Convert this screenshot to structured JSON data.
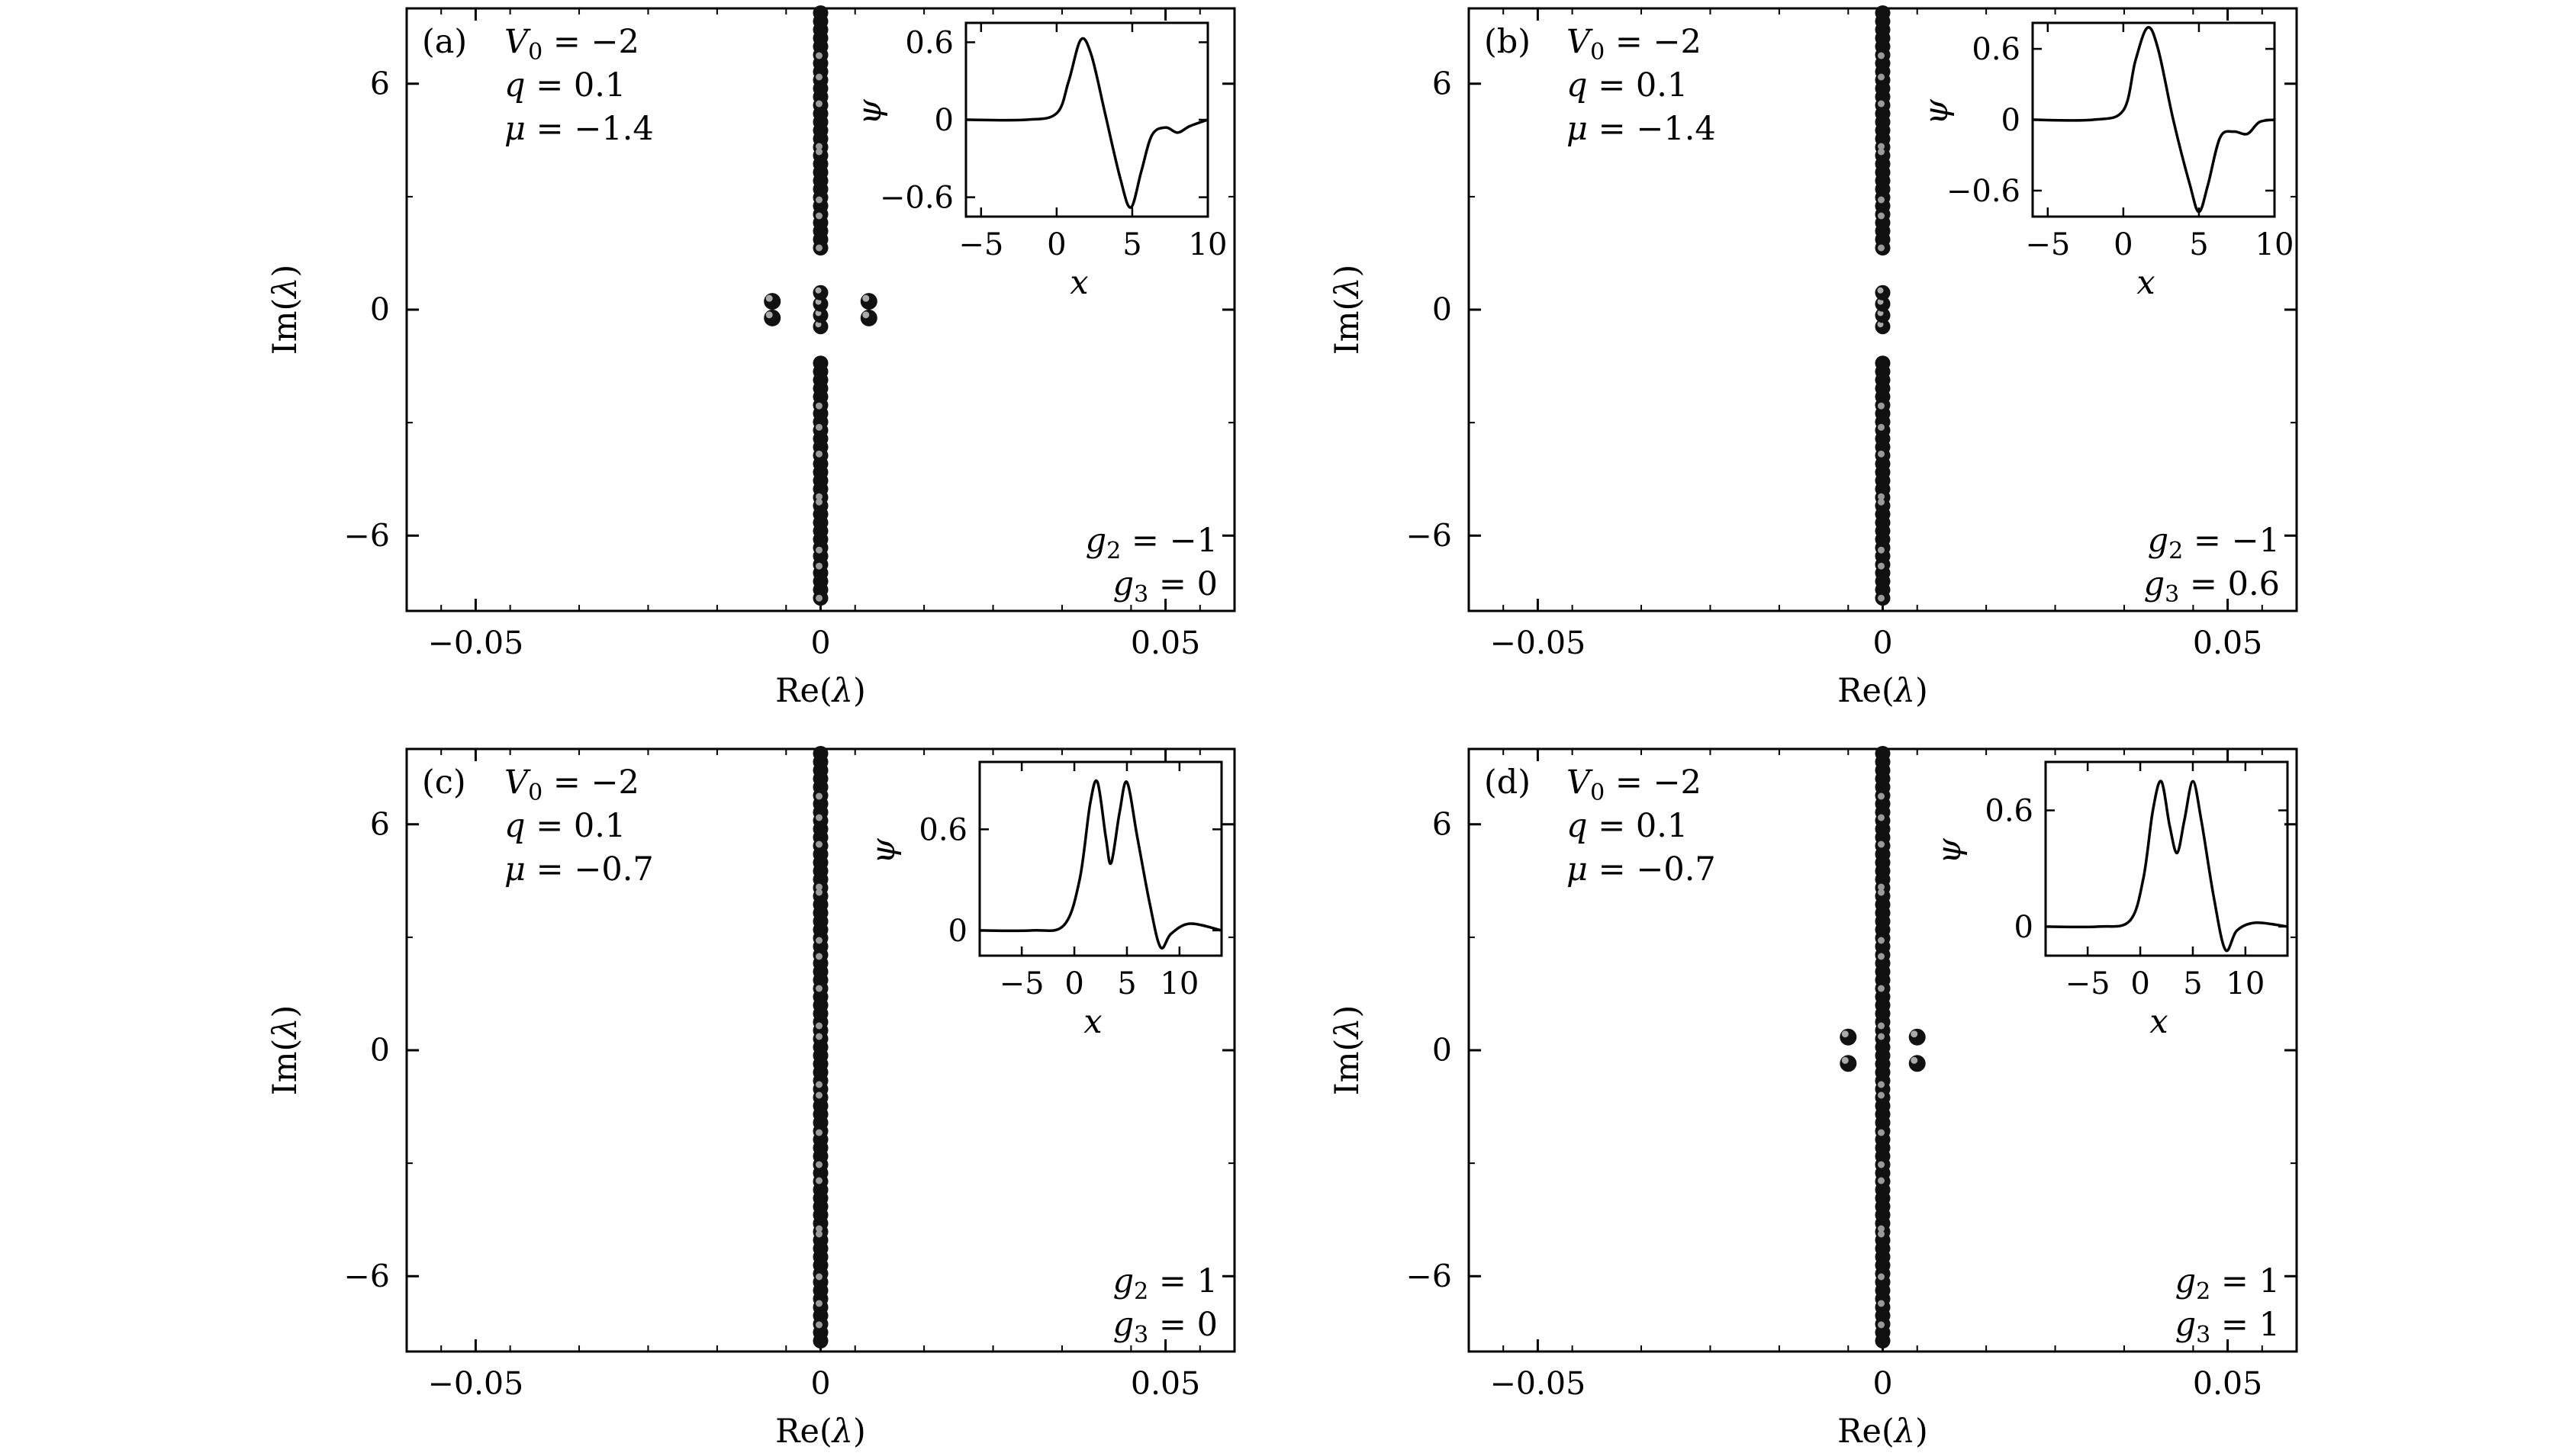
{
  "chart_data": [
    {
      "type": "scatter",
      "panel_label": "(a)",
      "xlabel": "Re(λ)",
      "ylabel": "Im(λ)",
      "xlim": [
        -0.06,
        0.06
      ],
      "ylim": [
        -8,
        8
      ],
      "xticks": [
        "−0.05",
        "0",
        "0.05"
      ],
      "yticks": [
        "6",
        "0",
        "−6"
      ],
      "params": [
        "V0 = −2",
        "q = 0.1",
        "μ = −1.4"
      ],
      "couplings": [
        "g2 = −1",
        "g3 = 0"
      ],
      "spectrum": {
        "continuous_re": 0,
        "continuous_im": [
          [
            1.3,
            8
          ],
          [
            -8,
            -1.3
          ]
        ],
        "internal_im": [
          -0.45,
          -0.15,
          0.15,
          0.45
        ],
        "points": [
          [
            -0.007,
            0.22
          ],
          [
            -0.007,
            -0.22
          ],
          [
            0.007,
            0.22
          ],
          [
            0.007,
            -0.22
          ]
        ]
      },
      "inset": {
        "xlabel": "x",
        "ylabel": "ψ",
        "xlim": [
          -6,
          10
        ],
        "ylim": [
          -0.75,
          0.75
        ],
        "xticks": [
          "−5",
          "0",
          "5",
          "10"
        ],
        "yticks": [
          "0.6",
          "0",
          "−0.6"
        ],
        "x": [
          -6,
          -2,
          0,
          0.8,
          1.6,
          2.3,
          3.2,
          4.2,
          4.9,
          5.6,
          6.3,
          7.2,
          8,
          8.8,
          10
        ],
        "y": [
          0,
          0,
          0.05,
          0.3,
          0.62,
          0.5,
          0.05,
          -0.45,
          -0.68,
          -0.4,
          -0.12,
          -0.06,
          -0.1,
          -0.05,
          0
        ]
      }
    },
    {
      "type": "scatter",
      "panel_label": "(b)",
      "xlabel": "Re(λ)",
      "ylabel": "Im(λ)",
      "xlim": [
        -0.06,
        0.06
      ],
      "ylim": [
        -8,
        8
      ],
      "xticks": [
        "−0.05",
        "0",
        "0.05"
      ],
      "yticks": [
        "6",
        "0",
        "−6"
      ],
      "params": [
        "V0 = −2",
        "q = 0.1",
        "μ = −1.4"
      ],
      "couplings": [
        "g2 = −1",
        "g3 = 0.6"
      ],
      "spectrum": {
        "continuous_re": 0,
        "continuous_im": [
          [
            1.3,
            8
          ],
          [
            -8,
            -1.3
          ]
        ],
        "internal_im": [
          -0.45,
          -0.15,
          0.15,
          0.45
        ],
        "points": []
      },
      "inset": {
        "xlabel": "x",
        "ylabel": "ψ",
        "xlim": [
          -6,
          10
        ],
        "ylim": [
          -0.82,
          0.82
        ],
        "xticks": [
          "−5",
          "0",
          "5",
          "10"
        ],
        "yticks": [
          "0.6",
          "0",
          "−0.6"
        ],
        "x": [
          -6,
          -2,
          0,
          0.8,
          1.6,
          2.3,
          3.3,
          4.4,
          5,
          5.6,
          6.4,
          7.3,
          8.2,
          9,
          10
        ],
        "y": [
          0,
          0,
          0.08,
          0.5,
          0.78,
          0.6,
          0.0,
          -0.55,
          -0.78,
          -0.55,
          -0.15,
          -0.1,
          -0.12,
          -0.02,
          0
        ]
      }
    },
    {
      "type": "scatter",
      "panel_label": "(c)",
      "xlabel": "Re(λ)",
      "ylabel": "Im(λ)",
      "xlim": [
        -0.06,
        0.06
      ],
      "ylim": [
        -8,
        8
      ],
      "xticks": [
        "−0.05",
        "0",
        "0.05"
      ],
      "yticks": [
        "6",
        "0",
        "−6"
      ],
      "params": [
        "V0 = −2",
        "q = 0.1",
        "μ = −0.7"
      ],
      "couplings": [
        "g2 = 1",
        "g3 = 0"
      ],
      "spectrum": {
        "continuous_re": 0,
        "continuous_im": [
          [
            -8,
            8
          ]
        ],
        "internal_im": [],
        "points": []
      },
      "inset": {
        "xlabel": "x",
        "ylabel": "ψ",
        "xlim": [
          -9,
          14
        ],
        "ylim": [
          -0.15,
          1.0
        ],
        "xticks": [
          "−5",
          "0",
          "5",
          "10"
        ],
        "yticks": [
          "0.6",
          "0"
        ],
        "x": [
          -9,
          -4,
          -1,
          0.5,
          1.5,
          2.2,
          3,
          3.5,
          4.3,
          5,
          6,
          7.2,
          8.2,
          9.2,
          11,
          14
        ],
        "y": [
          0,
          0,
          0.03,
          0.3,
          0.75,
          0.88,
          0.55,
          0.4,
          0.7,
          0.88,
          0.55,
          0.15,
          -0.1,
          -0.02,
          0.04,
          0
        ]
      }
    },
    {
      "type": "scatter",
      "panel_label": "(d)",
      "xlabel": "Re(λ)",
      "ylabel": "Im(λ)",
      "xlim": [
        -0.06,
        0.06
      ],
      "ylim": [
        -8,
        8
      ],
      "xticks": [
        "−0.05",
        "0",
        "0.05"
      ],
      "yticks": [
        "6",
        "0",
        "−6"
      ],
      "params": [
        "V0 = −2",
        "q = 0.1",
        "μ = −0.7"
      ],
      "couplings": [
        "g2 = 1",
        "g3 = 1"
      ],
      "spectrum": {
        "continuous_re": 0,
        "continuous_im": [
          [
            -8,
            8
          ]
        ],
        "internal_im": [],
        "points": [
          [
            -0.005,
            0.35
          ],
          [
            -0.005,
            -0.35
          ],
          [
            0.005,
            0.35
          ],
          [
            0.005,
            -0.35
          ]
        ]
      },
      "inset": {
        "xlabel": "x",
        "ylabel": "ψ",
        "xlim": [
          -9,
          14
        ],
        "ylim": [
          -0.15,
          0.85
        ],
        "xticks": [
          "−5",
          "0",
          "5",
          "10"
        ],
        "yticks": [
          "0.6",
          "0"
        ],
        "x": [
          -9,
          -4,
          -1,
          0.3,
          1.2,
          2,
          2.8,
          3.5,
          4.2,
          5,
          5.8,
          7,
          8.1,
          9.2,
          11,
          14
        ],
        "y": [
          0,
          0,
          0.03,
          0.25,
          0.6,
          0.75,
          0.52,
          0.38,
          0.55,
          0.75,
          0.55,
          0.15,
          -0.12,
          -0.02,
          0.02,
          0
        ]
      }
    }
  ]
}
